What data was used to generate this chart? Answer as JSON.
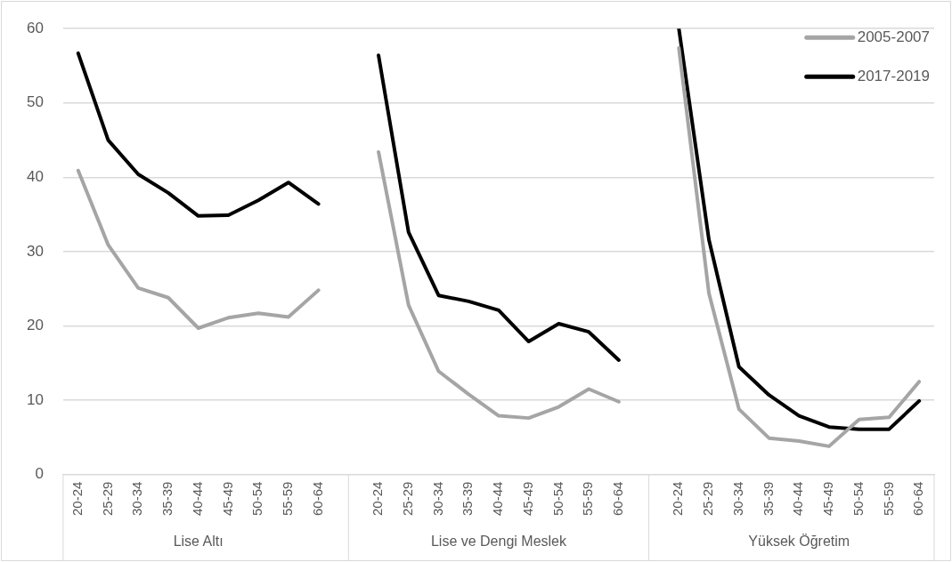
{
  "chart_data": {
    "type": "line",
    "categories": [
      "20-24",
      "25-29",
      "30-34",
      "35-39",
      "40-44",
      "45-49",
      "50-54",
      "55-59",
      "60-64",
      null,
      "20-24",
      "25-29",
      "30-34",
      "35-39",
      "40-44",
      "45-49",
      "50-54",
      "55-59",
      "60-64",
      null,
      "20-24",
      "25-29",
      "30-34",
      "35-39",
      "40-44",
      "45-49",
      "50-54",
      "55-59",
      "60-64"
    ],
    "series": [
      {
        "name": "2005-2007",
        "color": "#a5a5a5",
        "values": [
          40.9,
          30.9,
          25.1,
          23.8,
          19.7,
          21.1,
          21.7,
          21.2,
          24.8,
          null,
          43.4,
          22.8,
          13.9,
          10.8,
          7.9,
          7.6,
          9.1,
          11.5,
          9.8,
          null,
          57.4,
          24.4,
          8.8,
          4.9,
          4.5,
          3.8,
          7.4,
          7.7,
          12.5
        ]
      },
      {
        "name": "2017-2019",
        "color": "#000000",
        "values": [
          56.7,
          45.0,
          40.4,
          37.9,
          34.8,
          34.9,
          36.9,
          39.3,
          36.4,
          null,
          56.4,
          32.6,
          24.1,
          23.3,
          22.1,
          17.9,
          20.3,
          19.2,
          15.4,
          null,
          60,
          31.6,
          14.5,
          10.7,
          7.9,
          6.4,
          6.1,
          6.1,
          9.9
        ]
      }
    ],
    "ylim": [
      0,
      60
    ],
    "yticks": [
      0,
      10,
      20,
      30,
      40,
      50,
      60
    ],
    "grid": "y",
    "legend": "top right",
    "marker": "none",
    "line_style": "solid",
    "annotations": [
      "Lise Altı",
      "Lise ve Dengi Meslek",
      "Yüksek Öğretim"
    ]
  }
}
